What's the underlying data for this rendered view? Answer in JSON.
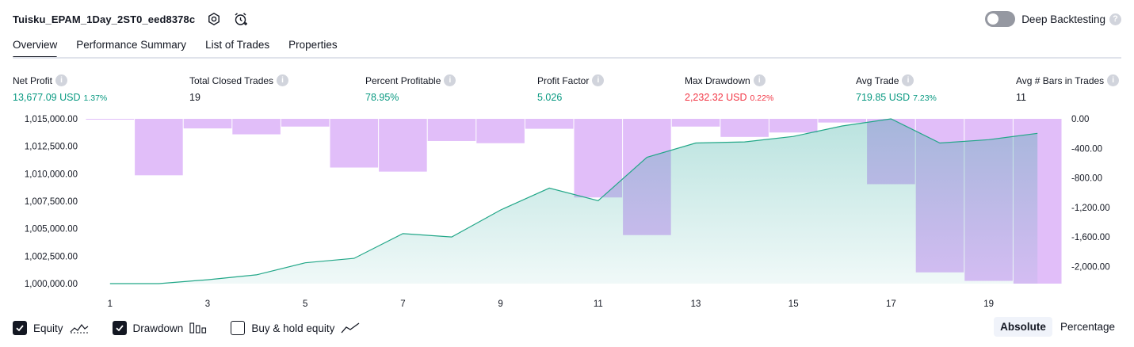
{
  "header": {
    "strategy_name": "Tuisku_EPAM_1Day_2ST0_eed8378c",
    "settings_icon": "gear-icon",
    "alert_icon": "alarm-clock-plus-icon"
  },
  "deep_backtesting": {
    "label": "Deep Backtesting",
    "enabled": false,
    "help": "?"
  },
  "tabs": [
    {
      "label": "Overview",
      "active": true
    },
    {
      "label": "Performance Summary",
      "active": false
    },
    {
      "label": "List of Trades",
      "active": false
    },
    {
      "label": "Properties",
      "active": false
    }
  ],
  "metrics": [
    {
      "label": "Net Profit",
      "value": "13,677.09 USD",
      "pct": "1.37%",
      "tone": "pos"
    },
    {
      "label": "Total Closed Trades",
      "value": "19",
      "pct": "",
      "tone": "plain"
    },
    {
      "label": "Percent Profitable",
      "value": "78.95%",
      "pct": "",
      "tone": "pos"
    },
    {
      "label": "Profit Factor",
      "value": "5.026",
      "pct": "",
      "tone": "pos"
    },
    {
      "label": "Max Drawdown",
      "value": "2,232.32 USD",
      "pct": "0.22%",
      "tone": "neg"
    },
    {
      "label": "Avg Trade",
      "value": "719.85 USD",
      "pct": "7.23%",
      "tone": "pos"
    },
    {
      "label": "Avg # Bars in Trades",
      "value": "11",
      "pct": "",
      "tone": "plain"
    }
  ],
  "info_glyph": "i",
  "colors": {
    "equity_line": "#22a788",
    "equity_fill": "#26a69a",
    "drawdown_fill": "#e1bef9",
    "positive": "#089981",
    "negative": "#f23645"
  },
  "chart_data": {
    "type": "area",
    "x_ticks": [
      "1",
      "3",
      "5",
      "7",
      "9",
      "11",
      "13",
      "15",
      "17",
      "19"
    ],
    "left_axis": {
      "ticks": [
        "1,015,000.00",
        "1,012,500.00",
        "1,010,000.00",
        "1,007,500.00",
        "1,005,000.00",
        "1,002,500.00",
        "1,000,000.00"
      ],
      "ylim": [
        1000000,
        1015000
      ]
    },
    "right_axis": {
      "ticks": [
        "0.00",
        "-400.00",
        "-800.00",
        "-1,200.00",
        "-1,600.00",
        "-2,000.00"
      ],
      "ylim": [
        -2232.32,
        0
      ]
    },
    "series": [
      {
        "name": "Equity",
        "x": [
          1,
          2,
          3,
          4,
          5,
          6,
          7,
          8,
          9,
          10,
          11,
          12,
          13,
          14,
          15,
          16,
          17,
          18,
          19,
          20
        ],
        "values": [
          1000000,
          1000000,
          1000350,
          1000800,
          1001900,
          1002300,
          1004550,
          1004250,
          1006700,
          1008700,
          1007550,
          1011500,
          1012800,
          1012900,
          1013400,
          1014350,
          1015000,
          1012800,
          1013100,
          1013677.09
        ]
      },
      {
        "name": "Drawdown",
        "x": [
          1,
          2,
          3,
          4,
          5,
          6,
          7,
          8,
          9,
          10,
          11,
          12,
          13,
          14,
          15,
          16,
          17,
          18,
          19,
          20
        ],
        "values": [
          -5,
          -765,
          -130,
          -210,
          -105,
          -660,
          -715,
          -300,
          -330,
          -135,
          -1065,
          -1575,
          -105,
          -245,
          -185,
          -50,
          -885,
          -2080,
          -2195,
          -2232.32
        ]
      }
    ]
  },
  "legend": [
    {
      "label": "Equity",
      "checked": true,
      "icon": "equity-line-icon"
    },
    {
      "label": "Drawdown",
      "checked": true,
      "icon": "drawdown-bars-icon"
    },
    {
      "label": "Buy & hold equity",
      "checked": false,
      "icon": "buy-hold-line-icon"
    }
  ],
  "mode": [
    {
      "label": "Absolute",
      "active": true
    },
    {
      "label": "Percentage",
      "active": false
    }
  ]
}
